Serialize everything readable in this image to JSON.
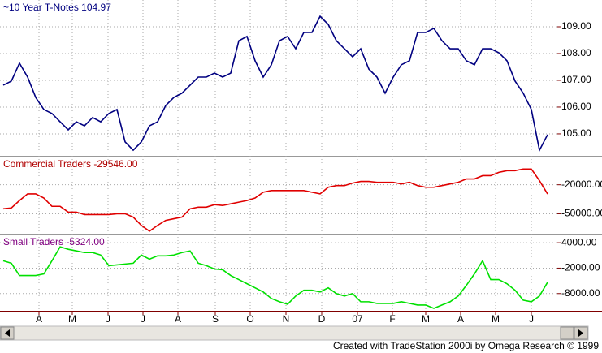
{
  "chart_data": [
    {
      "type": "line",
      "title": "~10 Year T-Notes  104.97",
      "title_color": "#000080",
      "color": "#000080",
      "xlim": [
        -0.4,
        68.1
      ],
      "ylim": [
        104.18,
        110.0
      ],
      "grid": true,
      "yticks": [
        {
          "value": 105,
          "label": "105.00"
        },
        {
          "value": 106,
          "label": "106.00"
        },
        {
          "value": 107,
          "label": "107.00"
        },
        {
          "value": 108,
          "label": "108.00"
        },
        {
          "value": 109,
          "label": "109.00"
        }
      ],
      "values": [
        106.82,
        106.97,
        107.64,
        107.12,
        106.36,
        105.91,
        105.76,
        105.45,
        105.15,
        105.45,
        105.3,
        105.61,
        105.45,
        105.76,
        105.91,
        104.7,
        104.39,
        104.7,
        105.3,
        105.45,
        106.06,
        106.36,
        106.52,
        106.82,
        107.12,
        107.12,
        107.27,
        107.12,
        107.27,
        108.48,
        108.64,
        107.73,
        107.12,
        107.58,
        108.48,
        108.64,
        108.18,
        108.79,
        108.79,
        109.39,
        109.09,
        108.48,
        108.18,
        107.88,
        108.18,
        107.42,
        107.12,
        106.52,
        107.12,
        107.58,
        107.73,
        108.79,
        108.79,
        108.94,
        108.48,
        108.18,
        108.18,
        107.73,
        107.58,
        108.18,
        108.18,
        108.03,
        107.73,
        106.97,
        106.52,
        105.91,
        104.39,
        104.97
      ]
    },
    {
      "type": "line",
      "title": "Commercial Traders  -29546.00",
      "title_color": "#b00000",
      "color": "#e00000",
      "xlim": [
        -0.4,
        68.1
      ],
      "ylim": [
        -70600,
        9100
      ],
      "grid": true,
      "yticks": [
        {
          "value": -50000,
          "label": "-50000.00"
        },
        {
          "value": -20000,
          "label": "-20000.00"
        }
      ],
      "values": [
        -44857,
        -44000,
        -36286,
        -29429,
        -29429,
        -33714,
        -42286,
        -42286,
        -48286,
        -48286,
        -50857,
        -50857,
        -50857,
        -50857,
        -50000,
        -50000,
        -53429,
        -62000,
        -68000,
        -62000,
        -56857,
        -55143,
        -53429,
        -44857,
        -43143,
        -43143,
        -40571,
        -41429,
        -39714,
        -38000,
        -36286,
        -33714,
        -27714,
        -26000,
        -26000,
        -26000,
        -26000,
        -26000,
        -27714,
        -29429,
        -22571,
        -20857,
        -20857,
        -18286,
        -16571,
        -16571,
        -17429,
        -17429,
        -17429,
        -19143,
        -17429,
        -20857,
        -22571,
        -22571,
        -20857,
        -19143,
        -17429,
        -14000,
        -14000,
        -10571,
        -10571,
        -7143,
        -5429,
        -5429,
        -3714,
        -3714,
        -15714,
        -29546
      ]
    },
    {
      "type": "line",
      "title": "Small Traders  -5324.00",
      "title_color": "#800080",
      "color": "#00e000",
      "xlim": [
        -0.4,
        68.1
      ],
      "ylim": [
        -12065,
        5935
      ],
      "grid": true,
      "yticks": [
        {
          "value": -8000,
          "label": "-8000.00"
        },
        {
          "value": -2000,
          "label": "-2000.00"
        },
        {
          "value": 4000,
          "label": "4000.00"
        }
      ],
      "xticks": [
        {
          "value": 4.4,
          "label": "A"
        },
        {
          "value": 8.5,
          "label": "M"
        },
        {
          "value": 12.9,
          "label": "J"
        },
        {
          "value": 17.2,
          "label": "J"
        },
        {
          "value": 21.5,
          "label": "A"
        },
        {
          "value": 26.1,
          "label": "S"
        },
        {
          "value": 30.4,
          "label": "O"
        },
        {
          "value": 34.8,
          "label": "N"
        },
        {
          "value": 39.2,
          "label": "D"
        },
        {
          "value": 43.6,
          "label": "07"
        },
        {
          "value": 47.9,
          "label": "F"
        },
        {
          "value": 52.0,
          "label": "M"
        },
        {
          "value": 56.3,
          "label": "A"
        },
        {
          "value": 60.6,
          "label": "M"
        },
        {
          "value": 65.0,
          "label": "J"
        }
      ],
      "values": [
        -258,
        -839,
        -3742,
        -3742,
        -3742,
        -3355,
        -258,
        3032,
        2452,
        2065,
        1677,
        1677,
        1097,
        -1419,
        -1226,
        -1032,
        -839,
        1097,
        129,
        903,
        903,
        1097,
        1677,
        2065,
        -839,
        -1419,
        -2194,
        -2387,
        -3742,
        -4710,
        -5677,
        -6645,
        -7613,
        -9161,
        -9935,
        -10516,
        -8581,
        -7226,
        -7226,
        -7613,
        -6645,
        -8000,
        -8581,
        -8000,
        -9935,
        -9935,
        -10323,
        -10323,
        -10323,
        -9935,
        -10323,
        -10710,
        -10710,
        -11484,
        -10710,
        -9935,
        -8581,
        -6065,
        -3355,
        -258,
        -4710,
        -4710,
        -5677,
        -7226,
        -9548,
        -9935,
        -8581,
        -5324
      ]
    }
  ],
  "footer": "Created with TradeStation 2000i by Omega Research © 1999"
}
